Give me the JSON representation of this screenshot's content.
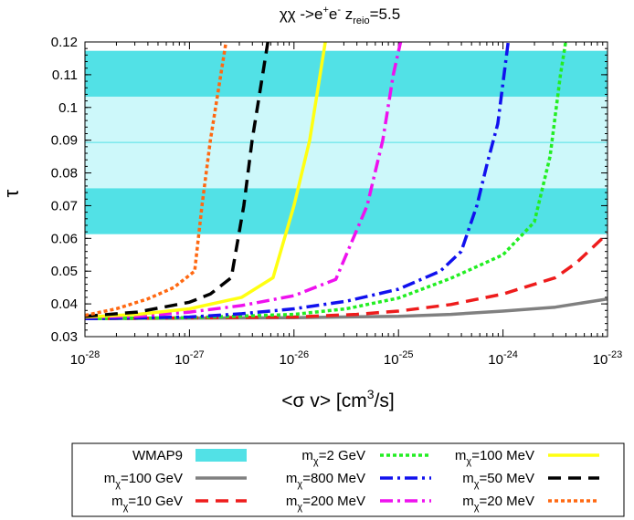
{
  "chart_data": {
    "type": "line",
    "title_main": "χχ ->e",
    "title_sup": "+",
    "title_mid": "e",
    "title_sup2": "-",
    "title_z": "  z",
    "title_z_sub": "reio",
    "title_z_val": "=5.5",
    "xlabel_pre": "<σ v> [cm",
    "xlabel_sup": "3",
    "xlabel_post": "/s]",
    "ylabel": "τ",
    "xscale": "log",
    "xlim": [
      1e-28,
      1e-23
    ],
    "ylim": [
      0.03,
      0.12
    ],
    "x_ticks": [
      {
        "base": "10",
        "exp": "-28",
        "value": -28
      },
      {
        "base": "10",
        "exp": "-27",
        "value": -27
      },
      {
        "base": "10",
        "exp": "-26",
        "value": -26
      },
      {
        "base": "10",
        "exp": "-25",
        "value": -25
      },
      {
        "base": "10",
        "exp": "-24",
        "value": -24
      },
      {
        "base": "10",
        "exp": "-23",
        "value": -23
      }
    ],
    "y_ticks": [
      "0.03",
      "0.04",
      "0.05",
      "0.06",
      "0.07",
      "0.08",
      "0.09",
      "0.1",
      "0.11",
      "0.12"
    ],
    "bands": {
      "color_outer": "#52e1e6",
      "color_inner": "#cdf8fa",
      "outer": [
        0.0613,
        0.1173
      ],
      "inner": [
        0.0753,
        0.1033
      ],
      "central": 0.0893
    },
    "series": [
      {
        "name": "m_χ=100 GeV",
        "label_pre": "m",
        "label_sub": "χ",
        "label_post": "=100 GeV",
        "color": "#808080",
        "dash": "solid",
        "points": [
          [
            -28,
            0.0355
          ],
          [
            -26,
            0.0358
          ],
          [
            -25,
            0.0362
          ],
          [
            -24.5,
            0.0368
          ],
          [
            -24,
            0.0378
          ],
          [
            -23.5,
            0.039
          ],
          [
            -23,
            0.0415
          ]
        ]
      },
      {
        "name": "m_χ=10 GeV",
        "label_pre": "m",
        "label_sub": "χ",
        "label_post": "=10 GeV",
        "color": "#ee1c1c",
        "dash": "dashed",
        "points": [
          [
            -28,
            0.0355
          ],
          [
            -26,
            0.036
          ],
          [
            -25.4,
            0.0368
          ],
          [
            -25,
            0.0378
          ],
          [
            -24.5,
            0.0398
          ],
          [
            -24,
            0.043
          ],
          [
            -23.5,
            0.048
          ],
          [
            -23.3,
            0.0525
          ],
          [
            -23,
            0.0615
          ]
        ]
      },
      {
        "name": "m_χ=2 GeV",
        "label_pre": "m",
        "label_sub": "χ",
        "label_post": "=2 GeV",
        "color": "#22ee22",
        "dash": "dotted",
        "points": [
          [
            -28,
            0.0355
          ],
          [
            -27,
            0.0358
          ],
          [
            -26,
            0.0368
          ],
          [
            -25.5,
            0.0385
          ],
          [
            -25,
            0.0418
          ],
          [
            -24.5,
            0.0478
          ],
          [
            -24,
            0.055
          ],
          [
            -23.7,
            0.065
          ],
          [
            -23.55,
            0.085
          ],
          [
            -23.45,
            0.11
          ],
          [
            -23.4,
            0.12
          ]
        ]
      },
      {
        "name": "m_χ=800 MeV",
        "label_pre": "m",
        "label_sub": "χ",
        "label_post": "=800 MeV",
        "color": "#1111ee",
        "dash": "dashdot",
        "points": [
          [
            -28,
            0.0355
          ],
          [
            -27,
            0.036
          ],
          [
            -26.5,
            0.037
          ],
          [
            -26,
            0.0385
          ],
          [
            -25.5,
            0.0408
          ],
          [
            -25,
            0.0445
          ],
          [
            -24.6,
            0.05
          ],
          [
            -24.4,
            0.056
          ],
          [
            -24.25,
            0.07
          ],
          [
            -24.15,
            0.083
          ],
          [
            -24.05,
            0.095
          ],
          [
            -23.95,
            0.12
          ]
        ]
      },
      {
        "name": "m_χ=200 MeV",
        "label_pre": "m",
        "label_sub": "χ",
        "label_post": "=200 MeV",
        "color": "#ee11ee",
        "dash": "dashdot",
        "points": [
          [
            -28,
            0.036
          ],
          [
            -27.5,
            0.0362
          ],
          [
            -27,
            0.0375
          ],
          [
            -26.5,
            0.0395
          ],
          [
            -26,
            0.0425
          ],
          [
            -25.6,
            0.0475
          ],
          [
            -25.3,
            0.07
          ],
          [
            -25.15,
            0.09
          ],
          [
            -25.05,
            0.11
          ],
          [
            -24.98,
            0.12
          ]
        ]
      },
      {
        "name": "m_χ=100 MeV",
        "label_pre": "m",
        "label_sub": "χ",
        "label_post": "=100 MeV",
        "color": "#ffff11",
        "dash": "solid",
        "points": [
          [
            -28,
            0.036
          ],
          [
            -27.5,
            0.0368
          ],
          [
            -27,
            0.0385
          ],
          [
            -26.5,
            0.042
          ],
          [
            -26.2,
            0.048
          ],
          [
            -26,
            0.07
          ],
          [
            -25.85,
            0.09
          ],
          [
            -25.75,
            0.11
          ],
          [
            -25.7,
            0.12
          ]
        ]
      },
      {
        "name": "m_χ=50 MeV",
        "label_pre": "m",
        "label_sub": "χ",
        "label_post": "=50 MeV",
        "color": "#000000",
        "dash": "dashed",
        "points": [
          [
            -28,
            0.0362
          ],
          [
            -27.5,
            0.0375
          ],
          [
            -27,
            0.0405
          ],
          [
            -26.8,
            0.043
          ],
          [
            -26.6,
            0.048
          ],
          [
            -26.48,
            0.07
          ],
          [
            -26.4,
            0.09
          ],
          [
            -26.3,
            0.11
          ],
          [
            -26.25,
            0.12
          ]
        ]
      },
      {
        "name": "m_χ=20 MeV",
        "label_pre": "m",
        "label_sub": "χ",
        "label_post": "=20 MeV",
        "color": "#ff6811",
        "dash": "dotted",
        "points": [
          [
            -28,
            0.0365
          ],
          [
            -27.7,
            0.0385
          ],
          [
            -27.4,
            0.0415
          ],
          [
            -27.15,
            0.045
          ],
          [
            -26.95,
            0.05
          ],
          [
            -26.88,
            0.07
          ],
          [
            -26.8,
            0.09
          ],
          [
            -26.7,
            0.11
          ],
          [
            -26.65,
            0.12
          ]
        ]
      }
    ],
    "legend": {
      "position": "bottom-outside",
      "band_label": "WMAP9"
    }
  }
}
